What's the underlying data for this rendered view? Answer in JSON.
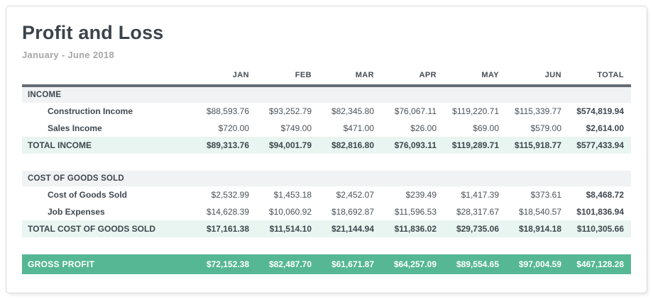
{
  "report": {
    "title": "Profit and Loss",
    "period": "January - June 2018"
  },
  "colors": {
    "accent_teal": "#55b794",
    "total_row_bg": "#e9f5f0",
    "section_row_bg": "#f1f2f4",
    "header_rule": "#636d76",
    "title_text": "#3c434a",
    "period_text": "#a6a6a6"
  },
  "table": {
    "columns": [
      "JAN",
      "FEB",
      "MAR",
      "APR",
      "MAY",
      "JUN",
      "TOTAL"
    ],
    "income": {
      "section_label": "INCOME",
      "rows": [
        {
          "label": "Construction Income",
          "values": [
            "$88,593.76",
            "$93,252.79",
            "$82,345.80",
            "$76,067.11",
            "$119,220.71",
            "$115,339.77",
            "$574,819.94"
          ]
        },
        {
          "label": "Sales Income",
          "values": [
            "$720.00",
            "$749.00",
            "$471.00",
            "$26.00",
            "$69.00",
            "$579.00",
            "$2,614.00"
          ]
        }
      ],
      "total": {
        "label": "TOTAL INCOME",
        "values": [
          "$89,313.76",
          "$94,001.79",
          "$82,816.80",
          "$76,093.11",
          "$119,289.71",
          "$115,918.77",
          "$577,433.94"
        ]
      }
    },
    "cogs": {
      "section_label": "COST OF GOODS SOLD",
      "rows": [
        {
          "label": "Cost of Goods Sold",
          "values": [
            "$2,532.99",
            "$1,453.18",
            "$2,452.07",
            "$239.49",
            "$1,417.39",
            "$373.61",
            "$8,468.72"
          ]
        },
        {
          "label": "Job Expenses",
          "values": [
            "$14,628.39",
            "$10,060.92",
            "$18,692.87",
            "$11,596.53",
            "$28,317.67",
            "$18,540.57",
            "$101,836.94"
          ]
        }
      ],
      "total": {
        "label": "TOTAL COST OF GOODS SOLD",
        "values": [
          "$17,161.38",
          "$11,514.10",
          "$21,144.94",
          "$11,836.02",
          "$29,735.06",
          "$18,914.18",
          "$110,305.66"
        ]
      }
    },
    "gross_profit": {
      "label": "GROSS PROFIT",
      "values": [
        "$72,152.38",
        "$82,487.70",
        "$61,671.87",
        "$64,257.09",
        "$89,554.65",
        "$97,004.59",
        "$467,128.28"
      ]
    }
  }
}
